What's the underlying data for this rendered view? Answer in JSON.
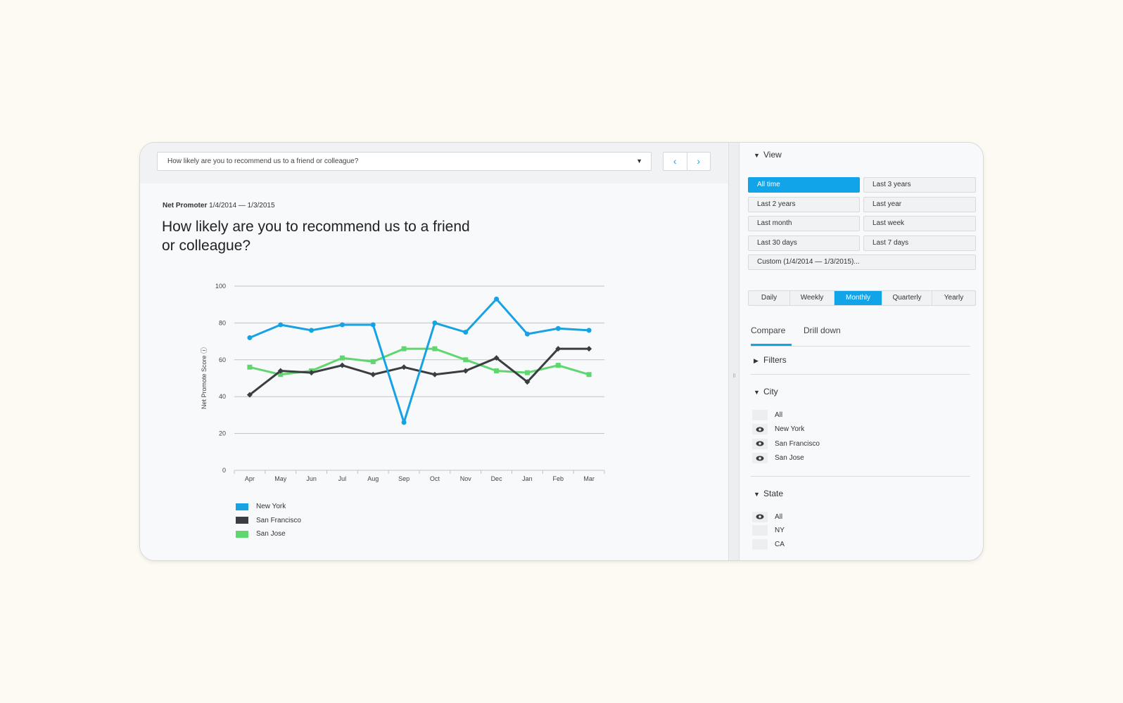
{
  "toolbar": {
    "question_select_value": "How likely are you to recommend us to a friend or colleague?",
    "caret_glyph": "▼",
    "prev_glyph": "‹",
    "next_glyph": "›"
  },
  "header": {
    "subtitle_label": "Net Promoter",
    "subtitle_range": "1/4/2014 — 1/3/2015",
    "title": "How likely are you to recommend us to a friend or colleague?"
  },
  "chart_data": {
    "type": "line",
    "title": "How likely are you to recommend us to a friend or colleague?",
    "xlabel": "",
    "ylabel": "Net Promote Score ⓘ",
    "ylim": [
      0,
      100
    ],
    "yticks": [
      0,
      20,
      40,
      60,
      80,
      100
    ],
    "grid": true,
    "legend": "bottom-left",
    "categories": [
      "Apr",
      "May",
      "Jun",
      "Jul",
      "Aug",
      "Sep",
      "Oct",
      "Nov",
      "Dec",
      "Jan",
      "Feb",
      "Mar"
    ],
    "series": [
      {
        "name": "New York",
        "color": "#16a2e3",
        "marker": "circle",
        "values": [
          72,
          79,
          76,
          79,
          79,
          26,
          80,
          75,
          93,
          74,
          77,
          76
        ]
      },
      {
        "name": "San Francisco",
        "color": "#3a3d42",
        "marker": "diamond",
        "values": [
          41,
          54,
          53,
          57,
          52,
          56,
          52,
          54,
          61,
          48,
          66,
          66
        ]
      },
      {
        "name": "San Jose",
        "color": "#5fd66e",
        "marker": "square",
        "values": [
          56,
          52,
          54,
          61,
          59,
          66,
          66,
          60,
          54,
          53,
          57,
          52
        ]
      }
    ]
  },
  "side": {
    "view_label": "View",
    "ranges": [
      "All time",
      "Last 3 years",
      "Last 2 years",
      "Last year",
      "Last month",
      "Last week",
      "Last 30 days",
      "Last 7 days"
    ],
    "custom_range": "Custom (1/4/2014 — 1/3/2015)...",
    "intervals": [
      "Daily",
      "Weekly",
      "Monthly",
      "Quarterly",
      "Yearly"
    ],
    "tab_compare": "Compare",
    "tab_drill": "Drill down",
    "filters_label": "Filters",
    "city_label": "City",
    "city_items": [
      "All",
      "New York",
      "San Francisco",
      "San Jose"
    ],
    "state_label": "State",
    "state_items": [
      "All",
      "NY",
      "CA"
    ],
    "tri_down": "▼",
    "tri_right": "▶"
  },
  "colors": {
    "accent": "#12a4e8",
    "new_york": "#16a2e3",
    "san_francisco": "#3a3d42",
    "san_jose": "#5fd66e"
  }
}
